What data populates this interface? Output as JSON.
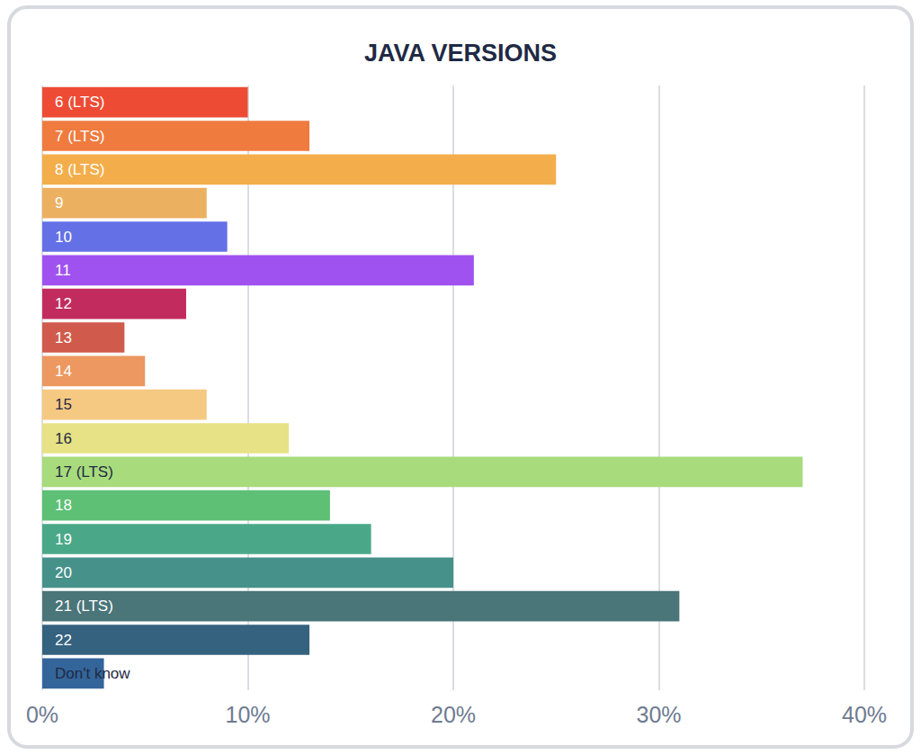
{
  "chart_data": {
    "type": "bar",
    "orientation": "horizontal",
    "title": "JAVA VERSIONS",
    "categories": [
      "6 (LTS)",
      "7 (LTS)",
      "8 (LTS)",
      "9",
      "10",
      "11",
      "12",
      "13",
      "14",
      "15",
      "16",
      "17 (LTS)",
      "18",
      "19",
      "20",
      "21 (LTS)",
      "22",
      "Don't know"
    ],
    "values": [
      10,
      13,
      25,
      8,
      9,
      21,
      7,
      4,
      5,
      8,
      12,
      37,
      14,
      16,
      20,
      31,
      13,
      3
    ],
    "colors": [
      "#ee4b35",
      "#ef7b3f",
      "#f3ae4b",
      "#ebb060",
      "#6470e6",
      "#a052f0",
      "#c22b5e",
      "#d05b4c",
      "#ec9860",
      "#f6c983",
      "#e7e285",
      "#a8db7c",
      "#5dc074",
      "#4aa888",
      "#46918a",
      "#4a7579",
      "#35627e",
      "#34659a"
    ],
    "xlim": [
      0,
      40
    ],
    "xticks": [
      {
        "value": 0,
        "label": "0%"
      },
      {
        "value": 10,
        "label": "10%"
      },
      {
        "value": 20,
        "label": "20%"
      },
      {
        "value": 30,
        "label": "30%"
      },
      {
        "value": 40,
        "label": "40%"
      }
    ],
    "grid": true
  }
}
